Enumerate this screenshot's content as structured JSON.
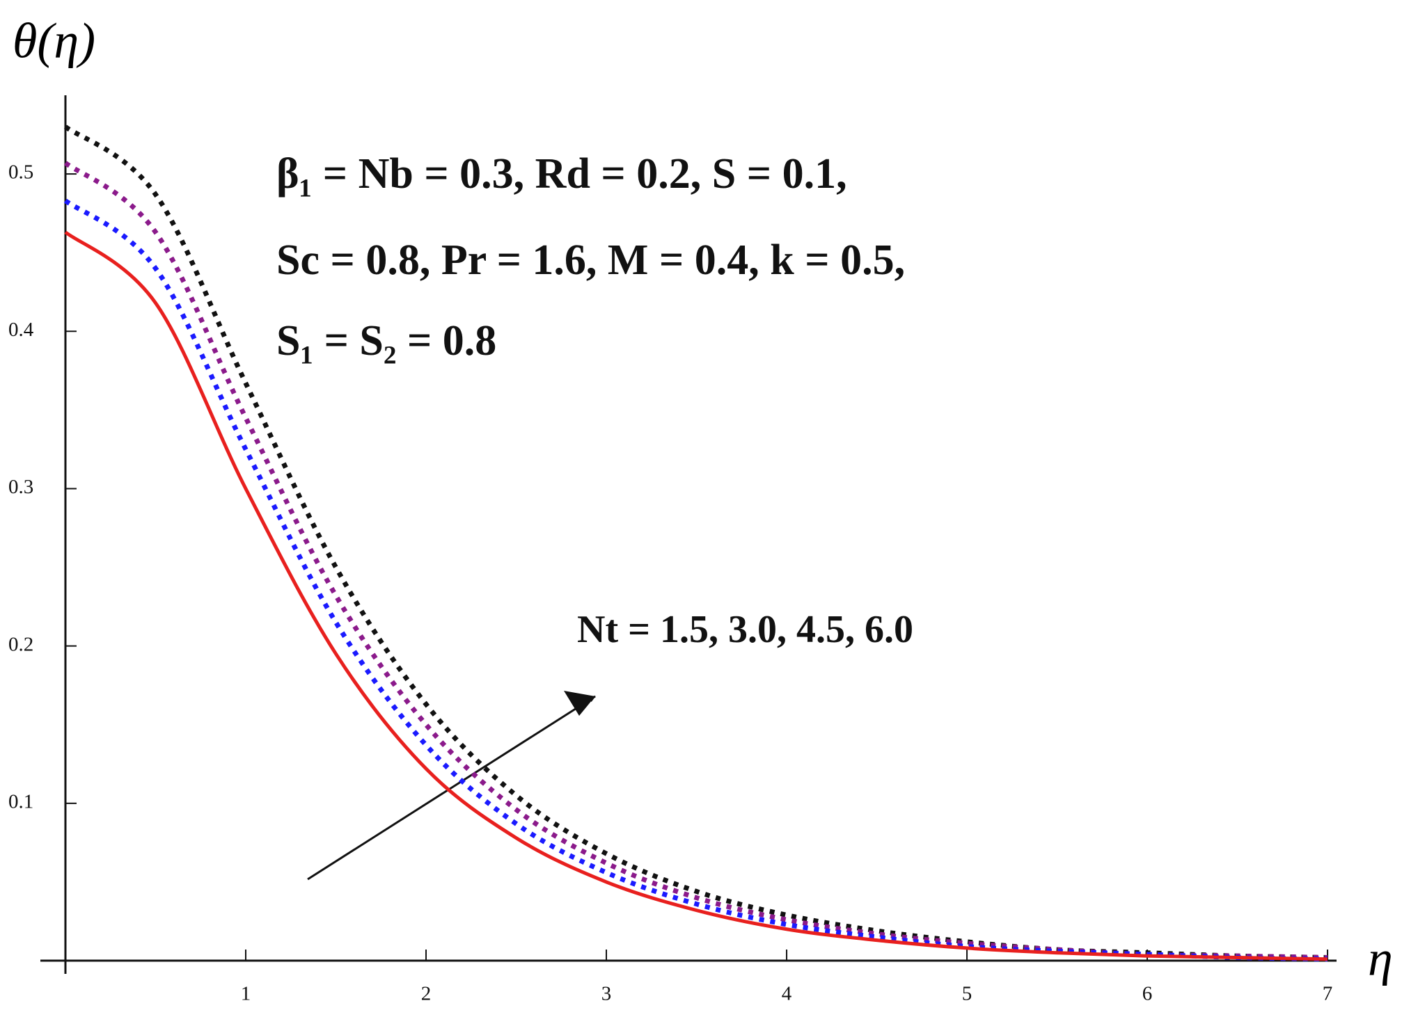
{
  "chart_data": {
    "type": "line",
    "y_label": "θ(η)",
    "x_label": "η",
    "annotations": [
      "β₁ = Nb = 0.3, Rd = 0.2, S = 0.1,",
      "Sc = 0.8, Pr = 1.6, M = 0.4, k = 0.5,",
      "S₁ = S₂ = 0.8",
      "Nt = 1.5, 3.0, 4.5, 6.0"
    ],
    "x": [
      0,
      0.5,
      1,
      1.5,
      2,
      2.5,
      3,
      3.5,
      4,
      4.5,
      5,
      5.5,
      6,
      6.5,
      7
    ],
    "series": [
      {
        "color": "#e8201e",
        "line_style": "solid",
        "values": [
          0.463,
          0.418,
          0.3,
          0.195,
          0.122,
          0.078,
          0.05,
          0.032,
          0.02,
          0.013,
          0.008,
          0.005,
          0.003,
          0.002,
          0.001
        ]
      },
      {
        "color": "#1a1aff",
        "line_style": "dotted",
        "values": [
          0.483,
          0.44,
          0.325,
          0.215,
          0.137,
          0.087,
          0.056,
          0.036,
          0.023,
          0.015,
          0.009,
          0.006,
          0.004,
          0.002,
          0.001
        ]
      },
      {
        "color": "#8b1a8b",
        "line_style": "dotted",
        "values": [
          0.507,
          0.463,
          0.345,
          0.232,
          0.15,
          0.096,
          0.062,
          0.04,
          0.026,
          0.017,
          0.011,
          0.007,
          0.004,
          0.003,
          0.002
        ]
      },
      {
        "color": "#111111",
        "line_style": "dotted",
        "values": [
          0.53,
          0.487,
          0.367,
          0.25,
          0.163,
          0.105,
          0.068,
          0.044,
          0.029,
          0.019,
          0.012,
          0.007,
          0.005,
          0.003,
          0.002
        ]
      }
    ],
    "xlim": [
      0,
      7.05
    ],
    "ylim": [
      0,
      0.55
    ],
    "xticks": [
      1,
      2,
      3,
      4,
      5,
      6,
      7
    ],
    "yticks": [
      0.1,
      0.2,
      0.3,
      0.4,
      0.5
    ]
  }
}
